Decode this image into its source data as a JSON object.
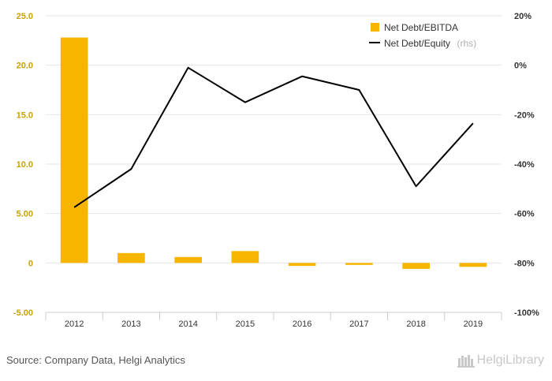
{
  "chart_data": {
    "type": "bar+line",
    "categories": [
      "2012",
      "2013",
      "2014",
      "2015",
      "2016",
      "2017",
      "2018",
      "2019"
    ],
    "series": [
      {
        "name": "Net Debt/EBITDA",
        "type": "bar",
        "axis": "left",
        "color": "#f7b500",
        "values": [
          22.8,
          1.0,
          0.6,
          1.2,
          -0.3,
          -0.2,
          -0.6,
          -0.4
        ]
      },
      {
        "name": "Net Debt/Equity",
        "note": "(rhs)",
        "type": "line",
        "axis": "right",
        "color": "#000000",
        "values": [
          -57.5,
          -42,
          -1,
          -15,
          -4.5,
          -10,
          -49,
          -23.5
        ]
      }
    ],
    "y_left": {
      "ylim": [
        -5,
        25
      ],
      "ticks": [
        25,
        20,
        15,
        10,
        5,
        0,
        -5
      ],
      "tick_labels": [
        "25.0",
        "20.0",
        "15.0",
        "10.0",
        "5.00",
        "0",
        "-5.00"
      ]
    },
    "y_right": {
      "ylim": [
        -100,
        20
      ],
      "ticks": [
        20,
        0,
        -20,
        -40,
        -60,
        -80,
        -100
      ],
      "tick_labels": [
        "20%",
        "0%",
        "-20%",
        "-40%",
        "-60%",
        "-80%",
        "-100%"
      ]
    },
    "grid": true,
    "legend_position": "top-right"
  },
  "footer": {
    "source": "Source: Company Data, Helgi Analytics",
    "brand": "HelgiLibrary"
  },
  "icons": {
    "brand_icon": "library-logo-icon"
  }
}
